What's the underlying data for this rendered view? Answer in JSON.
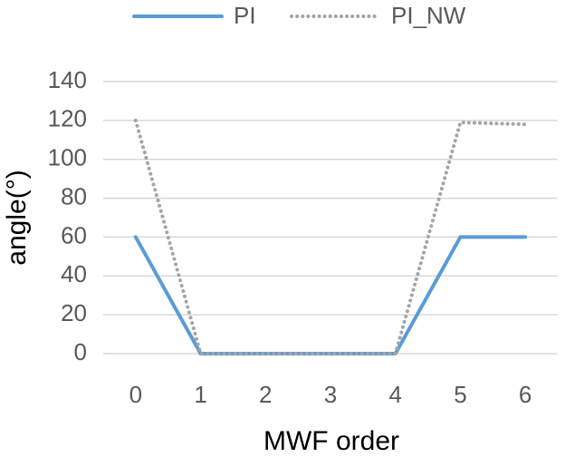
{
  "chart_data": {
    "type": "line",
    "x_label": "MWF order",
    "y_label": "angle(°)",
    "x": [
      0,
      1,
      2,
      3,
      4,
      5,
      6
    ],
    "series": [
      {
        "name": "PI",
        "color": "#5b9bd5",
        "style": "solid",
        "values": [
          60,
          0,
          0,
          0,
          0,
          60,
          60
        ]
      },
      {
        "name": "PI_NW",
        "color": "#a5a5a5",
        "style": "dotted",
        "values": [
          120,
          0,
          0,
          0,
          0,
          119,
          118
        ]
      }
    ],
    "xlim": [
      -0.5,
      6.5
    ],
    "xticks": [
      0,
      1,
      2,
      3,
      4,
      5,
      6
    ],
    "ylim": [
      0,
      140
    ],
    "yticks": [
      0,
      20,
      40,
      60,
      80,
      100,
      120,
      140
    ],
    "grid": true,
    "legend": "top"
  }
}
